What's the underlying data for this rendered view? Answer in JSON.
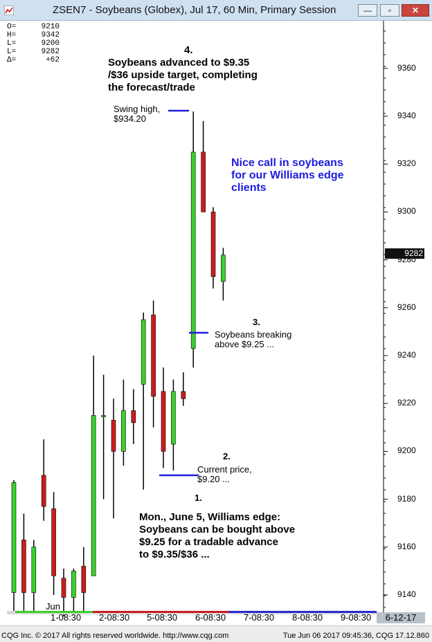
{
  "window": {
    "title": "ZSEN7 - Soybeans (Globex), Jul 17, 60 Min, Primary Session",
    "min_label": "—",
    "max_label": "▫",
    "close_label": "✕"
  },
  "info": [
    {
      "label": "O=",
      "value": "9210"
    },
    {
      "label": "H=",
      "value": "9342"
    },
    {
      "label": "L=",
      "value": "9200"
    },
    {
      "label": "L=",
      "value": "9282"
    },
    {
      "label": "Δ=",
      "value": "+62"
    }
  ],
  "annotations": {
    "a4_num": "4.",
    "a4_text1": "Soybeans advanced to $9.35",
    "a4_text2": "/$36 upside target, completing",
    "a4_text3": "the forecast/trade",
    "swing1": "Swing high,",
    "swing2": "$934.20",
    "nice1": "Nice call in soybeans",
    "nice2": "for our Williams edge",
    "nice3": "clients",
    "a3_num": "3.",
    "a3_text1": "Soybeans breaking",
    "a3_text2": "above $9.25 ...",
    "a2_num": "2.",
    "a2_text1": "Current price,",
    "a2_text2": "$9.20 ...",
    "a1_num": "1.",
    "a1_text1": "Mon., June 5, Williams edge:",
    "a1_text2": "Soybeans can be bought above",
    "a1_text3": "$9.25 for a tradable advance",
    "a1_text4": "to $9.35/$36 ..."
  },
  "current_price_tag": "9282",
  "x_labels": [
    "Jun",
    "1-08:30",
    "2-08:30",
    "5-08:30",
    "6-08:30",
    "7-08:30",
    "8-08:30",
    "9-08:30"
  ],
  "date_box": "6-12-17",
  "footer": {
    "left": "CQG Inc. © 2017 All rights reserved worldwide. http://www.cqg.com",
    "right": "Tue Jun 06 2017 09:45:36, CQG 17.12.860"
  },
  "colors": {
    "up": "#3ad12c",
    "down": "#cc1c1c",
    "annotation_line": "#1c1ce0",
    "price_tag": "#111111"
  },
  "chart_data": {
    "type": "candlestick",
    "title": "ZSEN7 - Soybeans (Globex), Jul 17, 60 Min, Primary Session",
    "ylim": [
      9130,
      9375
    ],
    "yticks": [
      9140,
      9160,
      9180,
      9200,
      9220,
      9240,
      9260,
      9280,
      9300,
      9320,
      9340,
      9360
    ],
    "x_categories": [
      "Jun",
      "1-08:30",
      "2-08:30",
      "5-08:30",
      "6-08:30",
      "7-08:30",
      "8-08:30",
      "9-08:30"
    ],
    "candles": [
      {
        "open": 9141,
        "high": 9188,
        "low": 9133,
        "close": 9187
      },
      {
        "open": 9163,
        "high": 9174,
        "low": 9133,
        "close": 9141
      },
      {
        "open": 9141,
        "high": 9163,
        "low": 9133,
        "close": 9160
      },
      {
        "open": 9190,
        "high": 9205,
        "low": 9171,
        "close": 9177
      },
      {
        "open": 9176,
        "high": 9183,
        "low": 9140,
        "close": 9148
      },
      {
        "open": 9147,
        "high": 9151,
        "low": 9131,
        "close": 9139
      },
      {
        "open": 9139,
        "high": 9151,
        "low": 9133,
        "close": 9150
      },
      {
        "open": 9152,
        "high": 9160,
        "low": 9133,
        "close": 9141
      },
      {
        "open": 9148,
        "high": 9240,
        "low": 9148,
        "close": 9215
      },
      {
        "open": 9215,
        "high": 9232,
        "low": 9180,
        "close": 9215
      },
      {
        "open": 9213,
        "high": 9222,
        "low": 9172,
        "close": 9200
      },
      {
        "open": 9200,
        "high": 9230,
        "low": 9194,
        "close": 9217
      },
      {
        "open": 9217,
        "high": 9226,
        "low": 9203,
        "close": 9212
      },
      {
        "open": 9228,
        "high": 9258,
        "low": 9184,
        "close": 9255
      },
      {
        "open": 9257,
        "high": 9263,
        "low": 9210,
        "close": 9223
      },
      {
        "open": 9225,
        "high": 9235,
        "low": 9193,
        "close": 9200
      },
      {
        "open": 9203,
        "high": 9230,
        "low": 9192,
        "close": 9225
      },
      {
        "open": 9225,
        "high": 9233,
        "low": 9219,
        "close": 9222
      },
      {
        "open": 9243,
        "high": 9342,
        "low": 9235,
        "close": 9325
      },
      {
        "open": 9325,
        "high": 9338,
        "low": 9300,
        "close": 9300
      },
      {
        "open": 9300,
        "high": 9302,
        "low": 9268,
        "close": 9273
      },
      {
        "open": 9271,
        "high": 9285,
        "low": 9263,
        "close": 9282
      }
    ]
  }
}
